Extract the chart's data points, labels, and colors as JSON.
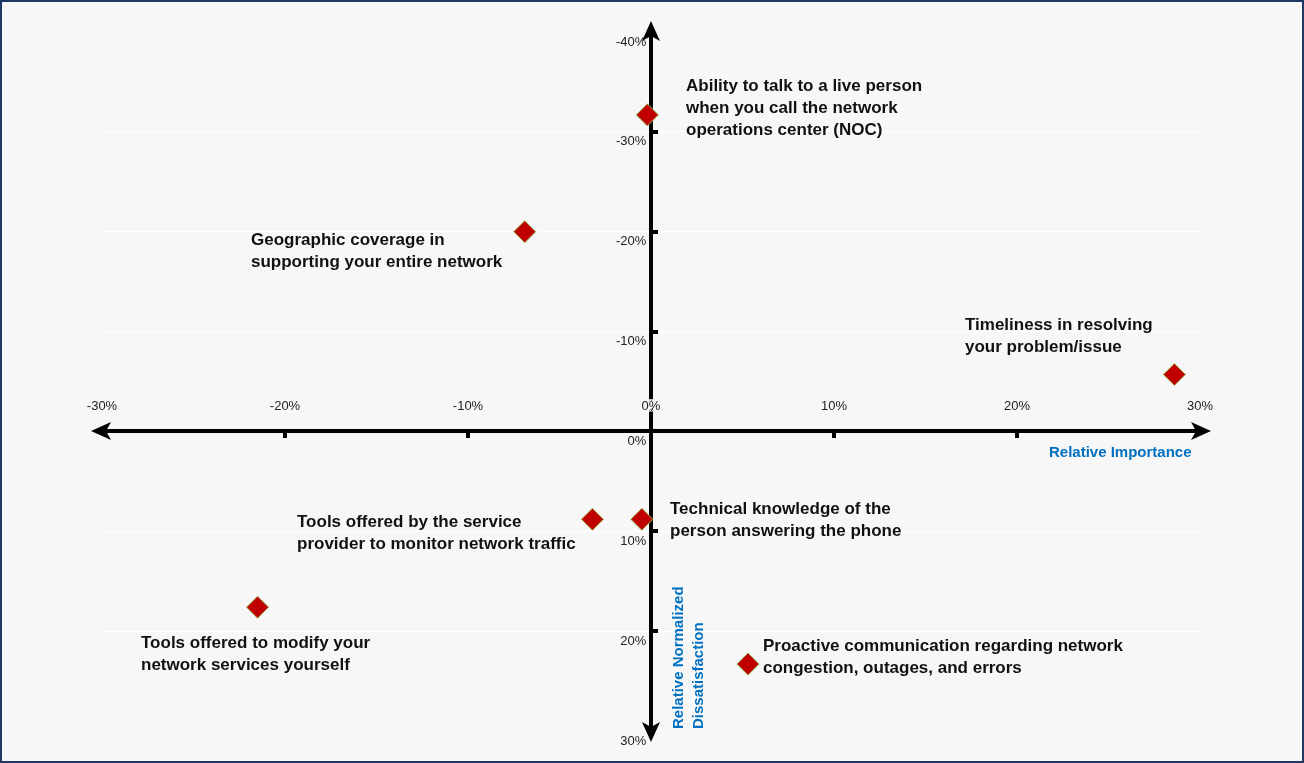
{
  "chart_data": {
    "type": "scatter",
    "xlabel": "Relative Importance",
    "ylabel": "Relative Normalized\nDissatisfaction",
    "series": [
      {
        "color": "#c00000",
        "x": [
          -0.2,
          -6.9,
          28.6,
          -3.2,
          -0.5,
          -21.5,
          5.3
        ],
        "values": [
          -31.7,
          -20.0,
          -5.7,
          8.8,
          8.8,
          17.6,
          23.3
        ]
      }
    ],
    "marker": "diamond",
    "grid": "y",
    "xlim": [
      -30,
      30
    ],
    "xticks": [
      {
        "value": -30,
        "label": "-30%"
      },
      {
        "value": -20,
        "label": "-20%"
      },
      {
        "value": -10,
        "label": "-10%"
      },
      {
        "value": 0,
        "label": "0%"
      },
      {
        "value": 10,
        "label": "10%"
      },
      {
        "value": 20,
        "label": "20%"
      },
      {
        "value": 30,
        "label": "30%"
      }
    ],
    "ylim": [
      30,
      -40
    ],
    "yticks": [
      {
        "value": -40,
        "label": "-40%"
      },
      {
        "value": -30,
        "label": "-30%"
      },
      {
        "value": -20,
        "label": "-20%"
      },
      {
        "value": -10,
        "label": "-10%"
      },
      {
        "value": 0,
        "label": "0%"
      },
      {
        "value": 10,
        "label": "10%"
      },
      {
        "value": 20,
        "label": "20%"
      },
      {
        "value": 30,
        "label": "30%"
      }
    ],
    "annotations": [
      {
        "text": "Ability to talk to a live person\nwhen you call the network\noperations center (NOC)",
        "x": -0.2,
        "y": -31.7
      },
      {
        "text": "Geographic coverage in\nsupporting your entire network",
        "x": -6.9,
        "y": -20.0
      },
      {
        "text": "Timeliness in resolving\nyour problem/issue",
        "x": 28.6,
        "y": -5.7
      },
      {
        "text": "Tools offered by the service\nprovider to monitor network traffic",
        "x": -3.2,
        "y": 8.8
      },
      {
        "text": "Technical knowledge of the\nperson answering the phone",
        "x": -0.5,
        "y": 8.8
      },
      {
        "text": "Tools offered to modify your\nnetwork services yourself",
        "x": -21.5,
        "y": 17.6
      },
      {
        "text": "Proactive communication regarding network\ncongestion, outages, and errors",
        "x": 5.3,
        "y": 23.3
      }
    ]
  }
}
